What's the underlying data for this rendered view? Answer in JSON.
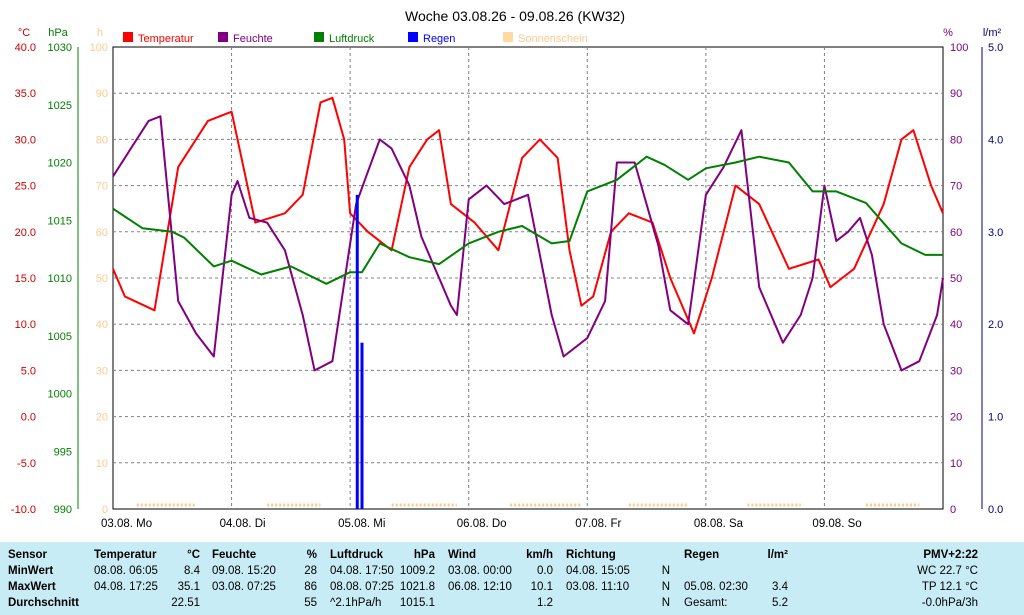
{
  "chart_data": {
    "type": "line",
    "title": "Woche 03.08.26 - 09.08.26 (KW32)",
    "x_labels": [
      "03.08. Mo",
      "04.08. Di",
      "05.08. Mi",
      "06.08. Do",
      "07.08. Fr",
      "08.08. Sa",
      "09.08. So"
    ],
    "axes": {
      "temp": {
        "unit": "°C",
        "min": -10,
        "max": 40,
        "ticks": [
          "40.0",
          "35.0",
          "30.0",
          "25.0",
          "20.0",
          "15.0",
          "10.0",
          "5.0",
          "0.0",
          "-5.0",
          "-10.0"
        ]
      },
      "press": {
        "unit": "hPa",
        "min": 990,
        "max": 1030,
        "ticks": [
          "1030",
          "1025",
          "1020",
          "1015",
          "1010",
          "1005",
          "1000",
          "995",
          "990"
        ]
      },
      "sun": {
        "unit": "h",
        "ticks": [
          "100",
          "90",
          "80",
          "70",
          "60",
          "50",
          "40",
          "30",
          "20",
          "10",
          "0"
        ]
      },
      "hum": {
        "unit": "%",
        "min": 0,
        "max": 100,
        "ticks": [
          "100",
          "90",
          "80",
          "70",
          "60",
          "50",
          "40",
          "30",
          "20",
          "10",
          "0"
        ]
      },
      "rain": {
        "unit": "l/m²",
        "min": 0,
        "max": 5,
        "ticks": [
          "5.0",
          "4.0",
          "3.0",
          "2.0",
          "1.0",
          "0.0"
        ]
      }
    },
    "legend": [
      {
        "name": "Temperatur",
        "color": "#ff0000"
      },
      {
        "name": "Feuchte",
        "color": "#800080"
      },
      {
        "name": "Luftdruck",
        "color": "#008000"
      },
      {
        "name": "Regen",
        "color": "#0000ff"
      },
      {
        "name": "Sonnenschein",
        "color": "#ffd9a0"
      }
    ],
    "series": [
      {
        "key": "temp",
        "axis": "temp",
        "color": "#ff0000",
        "x": [
          0,
          0.1,
          0.35,
          0.55,
          0.8,
          1.0,
          1.2,
          1.45,
          1.6,
          1.75,
          1.85,
          1.95,
          2.0,
          2.15,
          2.35,
          2.5,
          2.65,
          2.75,
          2.85,
          3.05,
          3.25,
          3.45,
          3.6,
          3.75,
          3.85,
          3.95,
          4.05,
          4.2,
          4.35,
          4.55,
          4.7,
          4.9,
          5.05,
          5.25,
          5.45,
          5.7,
          5.95,
          6.05,
          6.15,
          6.25,
          6.5,
          6.65,
          6.75,
          6.9,
          7.0
        ],
        "y": [
          16,
          13,
          11.5,
          27,
          32,
          33,
          21,
          22,
          24,
          34,
          34.5,
          30,
          22,
          20,
          18,
          27,
          30,
          31,
          23,
          21,
          18,
          28,
          30,
          28,
          18,
          12,
          13,
          20,
          22,
          21,
          15,
          9,
          15,
          25,
          23,
          16,
          17,
          14,
          15,
          16,
          23,
          30,
          31,
          25,
          22
        ]
      },
      {
        "key": "hum",
        "axis": "hum",
        "color": "#800080",
        "x": [
          0,
          0.15,
          0.3,
          0.4,
          0.55,
          0.7,
          0.85,
          1.0,
          1.05,
          1.15,
          1.3,
          1.45,
          1.6,
          1.7,
          1.85,
          2.05,
          2.15,
          2.25,
          2.35,
          2.5,
          2.6,
          2.7,
          2.75,
          2.85,
          2.9,
          3.0,
          3.05,
          3.15,
          3.3,
          3.5,
          3.7,
          3.8,
          4.0,
          4.15,
          4.25,
          4.4,
          4.6,
          4.7,
          4.85,
          5.0,
          5.15,
          5.3,
          5.45,
          5.65,
          5.8,
          5.9,
          6.0,
          6.1,
          6.2,
          6.3,
          6.4,
          6.5,
          6.65,
          6.8,
          6.95,
          7.0
        ],
        "y": [
          72,
          78,
          84,
          85,
          45,
          38,
          33,
          68,
          71,
          63,
          62,
          56,
          42,
          30,
          32,
          66,
          73,
          80,
          78,
          70,
          59,
          53,
          50,
          44,
          42,
          67,
          68,
          70,
          66,
          68,
          42,
          33,
          37,
          45,
          75,
          75,
          57,
          43,
          40,
          68,
          74,
          82,
          48,
          36,
          42,
          50,
          70,
          58,
          60,
          63,
          55,
          40,
          30,
          32,
          42,
          50
        ]
      },
      {
        "key": "press",
        "axis": "press",
        "color": "#008000",
        "x": [
          0,
          0.25,
          0.5,
          0.6,
          0.85,
          1.0,
          1.25,
          1.5,
          1.8,
          2.0,
          2.1,
          2.25,
          2.5,
          2.75,
          3.0,
          3.25,
          3.45,
          3.7,
          3.85,
          4.0,
          4.25,
          4.5,
          4.65,
          4.85,
          5.0,
          5.25,
          5.45,
          5.7,
          5.9,
          6.1,
          6.35,
          6.65,
          6.85,
          7.0
        ],
        "y": [
          1016,
          1014.3,
          1014,
          1013.5,
          1011,
          1011.5,
          1010.3,
          1011,
          1009.5,
          1010.5,
          1010.5,
          1013,
          1011.8,
          1011.2,
          1013,
          1014,
          1014.5,
          1013,
          1013.2,
          1017.5,
          1018.5,
          1020.5,
          1019.8,
          1018.5,
          1019.5,
          1020,
          1020.5,
          1020,
          1017.5,
          1017.5,
          1016.5,
          1013,
          1012,
          1012
        ]
      }
    ],
    "rain": [
      {
        "x": 2.06,
        "value": 3.4
      },
      {
        "x": 2.1,
        "value": 1.8
      }
    ],
    "sunshine_bands": [
      [
        0.2,
        0.7
      ],
      [
        1.3,
        1.75
      ],
      [
        2.35,
        2.9
      ],
      [
        3.35,
        3.95
      ],
      [
        4.35,
        4.85
      ],
      [
        5.35,
        5.8
      ],
      [
        6.35,
        6.8
      ]
    ]
  },
  "stats": {
    "sensor": {
      "title": "Sensor",
      "rows": [
        "MinWert",
        "MaxWert",
        "Durchschnitt"
      ]
    },
    "temperatur": {
      "title": "Temperatur",
      "unit": "°C",
      "rows": [
        [
          "08.08.  06:05",
          "8.4"
        ],
        [
          "04.08.  17:25",
          "35.1"
        ],
        [
          "",
          "22.51"
        ]
      ]
    },
    "feuchte": {
      "title": "Feuchte",
      "unit": "%",
      "rows": [
        [
          "09.08.  15:20",
          "28"
        ],
        [
          "03.08.  07:25",
          "86"
        ],
        [
          "",
          "55"
        ]
      ]
    },
    "luftdruck": {
      "title": "Luftdruck",
      "unit": "hPa",
      "rows": [
        [
          "04.08.  17:50",
          "1009.2"
        ],
        [
          "08.08.  07:25",
          "1021.8"
        ],
        [
          "^2.1hPa/h",
          "1015.1"
        ]
      ]
    },
    "wind": {
      "title": "Wind",
      "unit": "km/h",
      "rows": [
        [
          "03.08.  00:00",
          "0.0"
        ],
        [
          "06.08.  12:10",
          "10.1"
        ],
        [
          "",
          "1.2"
        ]
      ]
    },
    "richtung": {
      "title": "Richtung",
      "rows": [
        [
          "04.08.  15:05",
          "N"
        ],
        [
          "03.08.  11:10",
          "N"
        ],
        [
          "",
          "N"
        ]
      ]
    },
    "regen": {
      "title": "Regen",
      "unit": "l/m²",
      "rows": [
        [
          "",
          ""
        ],
        [
          "05.08.  02:30",
          "3.4"
        ],
        [
          "Gesamt:",
          "5.2"
        ]
      ]
    },
    "pmv": {
      "title": "PMV+2:22",
      "rows": [
        "WC 22.7 °C",
        "TP 12.1 °C",
        "-0.0hPa/3h"
      ]
    }
  }
}
